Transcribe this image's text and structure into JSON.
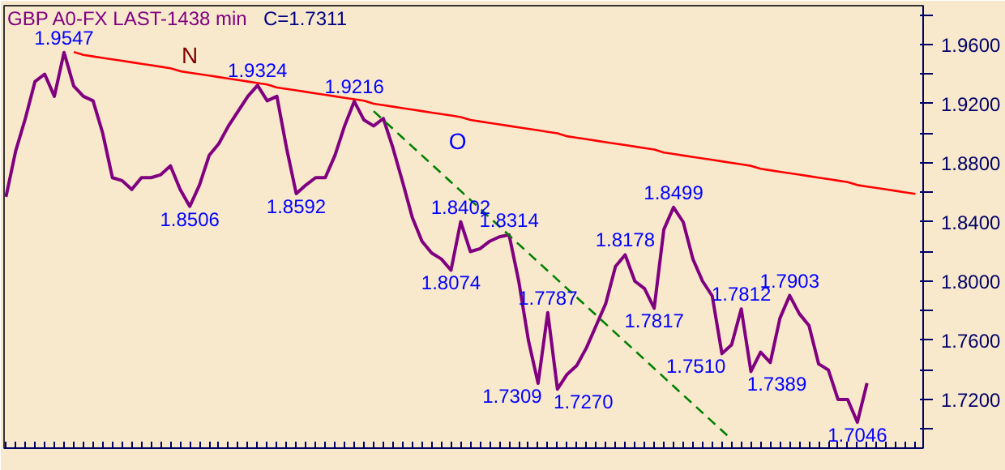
{
  "chart_data": {
    "type": "line",
    "title": "GBP A0-FX LAST-1438 min",
    "subtitle": "C=1.7311",
    "categories": [
      null,
      null,
      null,
      null,
      null,
      null,
      null,
      null,
      null,
      null,
      null,
      null,
      null,
      null,
      null,
      null,
      null,
      null,
      null,
      null,
      null,
      null,
      null,
      null,
      null,
      null,
      null,
      null,
      null,
      null,
      null,
      null,
      null,
      null,
      null,
      null,
      null,
      null,
      null,
      null,
      null,
      null,
      null,
      null,
      null,
      null,
      null,
      null,
      null,
      null,
      null,
      null,
      null,
      null,
      null,
      null,
      null,
      null,
      null,
      null,
      null,
      null,
      null,
      null,
      null,
      null,
      null,
      null,
      null,
      null,
      null,
      null,
      null,
      null,
      null,
      null,
      null,
      null,
      null,
      null,
      null,
      null,
      null,
      null,
      null,
      null,
      null,
      null,
      null,
      null,
      null,
      null,
      null,
      null,
      null
    ],
    "ylim": [
      1.6871,
      1.9863
    ],
    "tick_labels": "y",
    "grid": false,
    "marker": "none",
    "yticks": [
      {
        "value": 1.7,
        "label": null
      },
      {
        "value": 1.72,
        "label": "1.7200"
      },
      {
        "value": 1.74,
        "label": null
      },
      {
        "value": 1.76,
        "label": "1.7600"
      },
      {
        "value": 1.78,
        "label": null
      },
      {
        "value": 1.8,
        "label": "1.8000"
      },
      {
        "value": 1.82,
        "label": null
      },
      {
        "value": 1.84,
        "label": "1.8400"
      },
      {
        "value": 1.86,
        "label": null
      },
      {
        "value": 1.88,
        "label": "1.8800"
      },
      {
        "value": 1.9,
        "label": null
      },
      {
        "value": 1.92,
        "label": "1.9200"
      },
      {
        "value": 1.94,
        "label": null
      },
      {
        "value": 1.96,
        "label": "1.9600"
      },
      {
        "value": 1.98,
        "label": null
      }
    ],
    "series": [
      {
        "color": "#800080",
        "line_style": "solid",
        "values": [
          1.857,
          1.888,
          1.91,
          1.935,
          1.94,
          1.925,
          1.9547,
          1.932,
          1.925,
          1.922,
          1.9,
          1.87,
          1.868,
          1.862,
          1.87,
          1.87,
          1.872,
          1.878,
          1.862,
          1.8506,
          1.865,
          1.885,
          1.893,
          1.905,
          1.915,
          1.925,
          1.9324,
          1.922,
          1.925,
          1.89,
          1.8592,
          1.865,
          1.87,
          1.87,
          1.885,
          1.905,
          1.9216,
          1.909,
          1.905,
          1.91,
          1.89,
          1.867,
          1.843,
          1.827,
          1.819,
          1.815,
          1.8074,
          1.8402,
          1.82,
          1.822,
          1.827,
          1.83,
          1.8314,
          1.8,
          1.76,
          1.7309,
          1.7787,
          1.727,
          1.737,
          1.743,
          1.755,
          1.77,
          1.785,
          1.81,
          1.8178,
          1.8,
          1.795,
          1.7817,
          1.835,
          1.8499,
          1.84,
          1.815,
          1.8,
          1.79,
          1.751,
          1.757,
          1.7812,
          1.7389,
          1.752,
          1.745,
          1.775,
          1.7903,
          1.778,
          1.77,
          1.744,
          1.74,
          1.72,
          1.72,
          1.7046,
          1.7311,
          null,
          null,
          null,
          null,
          null
        ],
        "value_labels": [
          null,
          null,
          null,
          null,
          null,
          null,
          "1.9547",
          null,
          null,
          null,
          null,
          null,
          null,
          null,
          null,
          null,
          null,
          null,
          null,
          "1.8506",
          null,
          null,
          null,
          null,
          null,
          null,
          "1.9324",
          null,
          null,
          null,
          "1.8592",
          null,
          null,
          null,
          null,
          null,
          "1.9216",
          null,
          null,
          null,
          null,
          null,
          null,
          null,
          null,
          null,
          "1.8074",
          "1.8402",
          null,
          null,
          null,
          null,
          "1.8314",
          null,
          null,
          "1.7309",
          "1.7787",
          "1.7270",
          null,
          null,
          null,
          null,
          null,
          null,
          "1.8178",
          null,
          null,
          "1.7817",
          null,
          "1.8499",
          null,
          null,
          null,
          null,
          "1.7510",
          null,
          "1.7812",
          "1.7389",
          null,
          null,
          null,
          "1.7903",
          null,
          null,
          null,
          null,
          null,
          null,
          "1.7046",
          null,
          null,
          null,
          null,
          null,
          null
        ]
      },
      {
        "color": "#ff0000",
        "line_style": "solid",
        "values": [
          null,
          null,
          null,
          null,
          null,
          null,
          null,
          1.955,
          1.953,
          1.952,
          1.951,
          1.95,
          1.949,
          1.948,
          1.947,
          1.946,
          1.945,
          1.944,
          1.942,
          1.941,
          1.94,
          1.939,
          1.938,
          1.937,
          1.936,
          1.935,
          1.934,
          1.933,
          1.931,
          1.93,
          1.929,
          1.928,
          1.927,
          1.926,
          1.925,
          1.924,
          1.923,
          1.922,
          1.92,
          1.919,
          1.918,
          1.917,
          1.916,
          1.915,
          1.914,
          1.913,
          1.912,
          1.911,
          1.909,
          1.908,
          1.907,
          1.906,
          1.905,
          1.904,
          1.903,
          1.902,
          1.901,
          1.9,
          1.898,
          1.897,
          1.896,
          1.895,
          1.894,
          1.893,
          1.892,
          1.891,
          1.89,
          1.889,
          1.887,
          1.886,
          1.885,
          1.884,
          1.883,
          1.882,
          1.881,
          1.88,
          1.879,
          1.878,
          1.876,
          1.875,
          1.874,
          1.873,
          1.872,
          1.871,
          1.87,
          1.869,
          1.868,
          1.867,
          1.865,
          1.864,
          1.863,
          1.862,
          1.861,
          1.86,
          1.859
        ]
      },
      {
        "color": "#008000",
        "line_style": "dashed",
        "values": [
          null,
          null,
          null,
          null,
          null,
          null,
          null,
          null,
          null,
          null,
          null,
          null,
          null,
          null,
          null,
          null,
          null,
          null,
          null,
          null,
          null,
          null,
          null,
          null,
          null,
          null,
          null,
          null,
          null,
          null,
          null,
          null,
          null,
          null,
          null,
          null,
          null,
          null,
          1.915,
          1.909,
          1.903,
          1.897,
          1.891,
          1.885,
          1.879,
          1.873,
          1.867,
          1.861,
          1.855,
          1.849,
          1.843,
          1.837,
          1.831,
          1.825,
          1.819,
          1.813,
          1.807,
          1.801,
          1.795,
          1.789,
          1.783,
          1.777,
          1.771,
          1.765,
          1.759,
          1.753,
          1.747,
          1.741,
          1.735,
          1.729,
          1.723,
          1.717,
          1.711,
          1.705,
          1.699,
          1.693,
          null,
          null,
          null,
          null,
          null,
          null,
          null,
          null,
          null,
          null,
          null,
          null,
          null,
          null,
          null,
          null,
          null,
          null,
          null
        ]
      }
    ],
    "annotations": [
      "N",
      "O"
    ]
  }
}
